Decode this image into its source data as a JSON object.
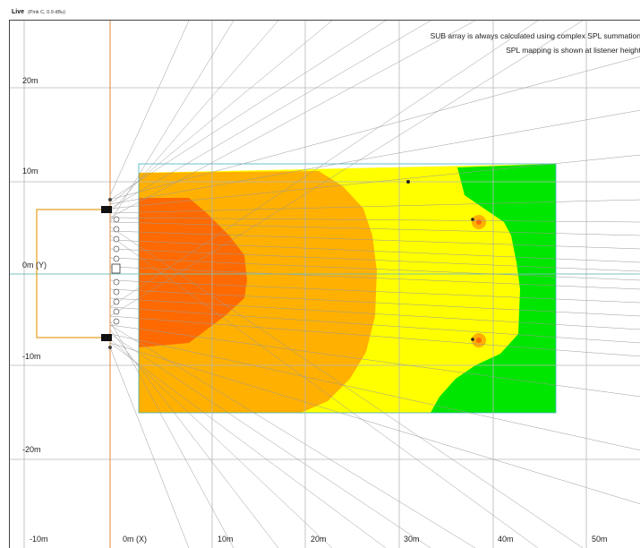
{
  "window": {
    "title": "Live",
    "subtitle": "(Pink C, 0.9 dBu)"
  },
  "notes": [
    "SUB array is always calculated using complex SPL summation",
    "SPL mapping is shown at listener height"
  ],
  "axes": {
    "x_labels": [
      "-10m",
      "0m (X)",
      "10m",
      "20m",
      "30m",
      "40m",
      "50m"
    ],
    "y_labels": [
      "20m",
      "10m",
      "0m (Y)",
      "-10m",
      "-20m"
    ]
  },
  "colors": {
    "grid": "#b8b8b8",
    "guide": "#e08a3c",
    "zone_high": "#ff6a00",
    "zone_mid": "#ffb300",
    "zone_low": "#ffff00",
    "zone_min": "#00ee00",
    "rays": "#a0a0a0",
    "frame": "#e6a020"
  },
  "icons": {
    "speaker": "speaker-icon",
    "sub": "subwoofer-icon",
    "mic": "measurement-point-icon"
  }
}
